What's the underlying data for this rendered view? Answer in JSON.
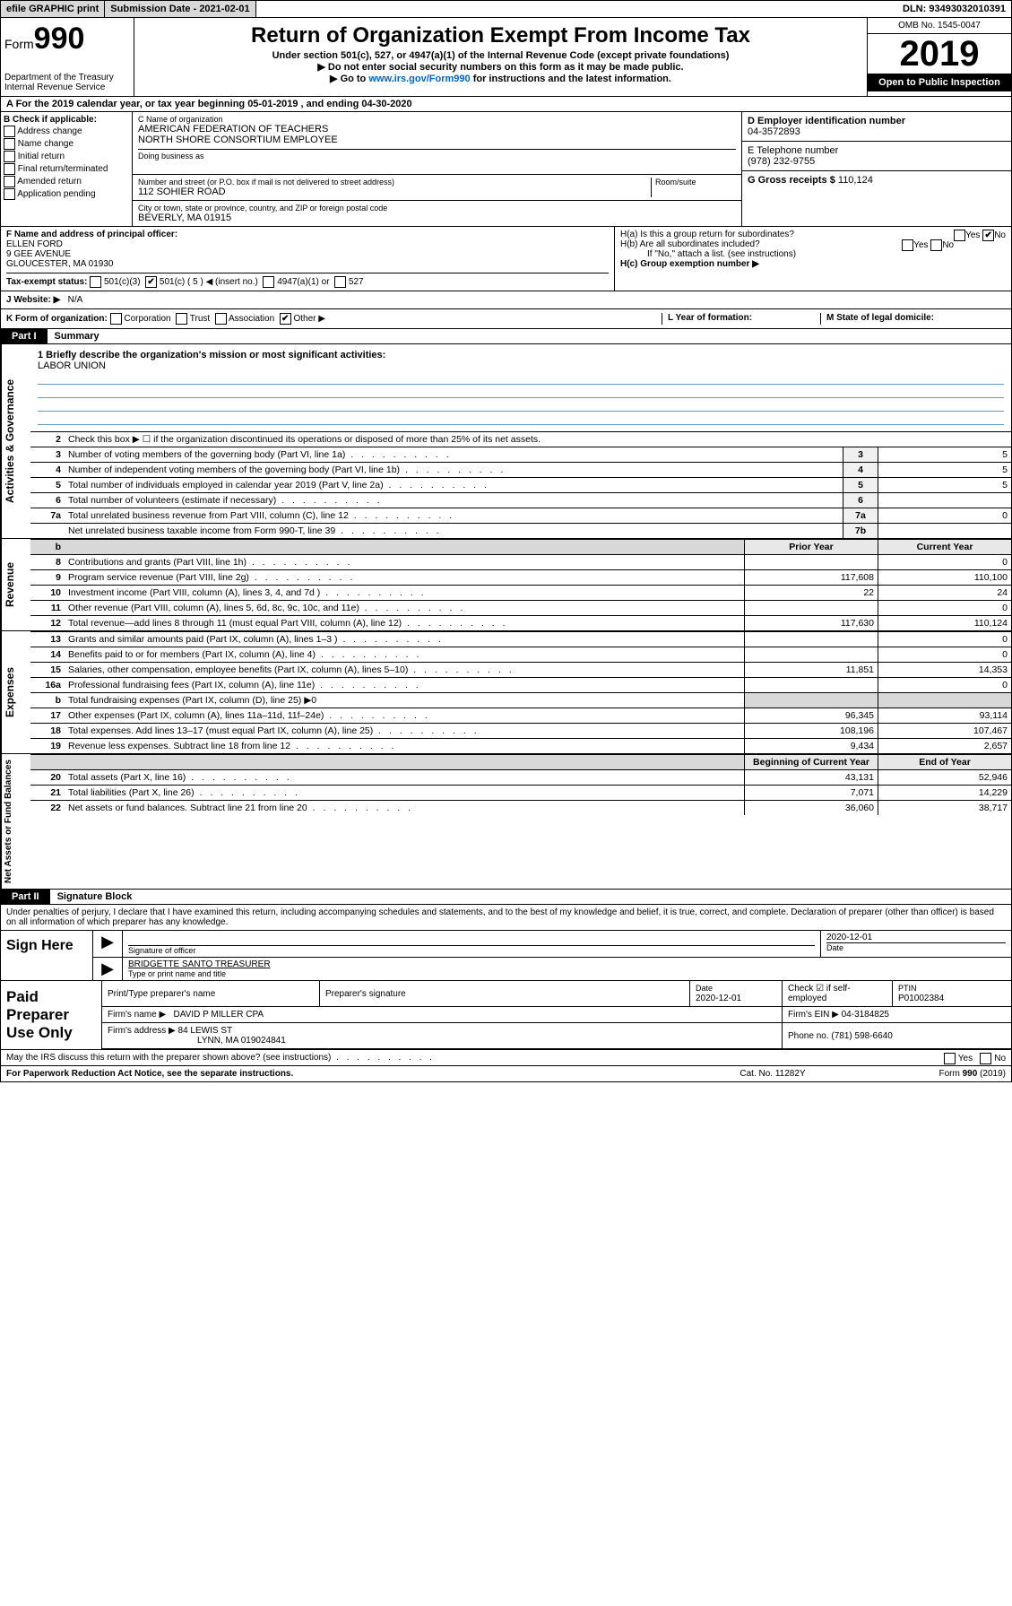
{
  "topbar": {
    "efile": "efile GRAPHIC print",
    "submission": "Submission Date - 2021-02-01",
    "dln": "DLN: 93493032010391"
  },
  "header": {
    "form_prefix": "Form",
    "form_no": "990",
    "dept": "Department of the Treasury\nInternal Revenue Service",
    "title": "Return of Organization Exempt From Income Tax",
    "sub1": "Under section 501(c), 527, or 4947(a)(1) of the Internal Revenue Code (except private foundations)",
    "sub2": "▶ Do not enter social security numbers on this form as it may be made public.",
    "sub3_a": "▶ Go to ",
    "sub3_link": "www.irs.gov/Form990",
    "sub3_b": " for instructions and the latest information.",
    "omb": "OMB No. 1545-0047",
    "year": "2019",
    "inspection": "Open to Public Inspection"
  },
  "rowA": "A   For the 2019 calendar year, or tax year beginning 05-01-2019    , and ending 04-30-2020",
  "boxB": {
    "label": "B Check if applicable:",
    "opts": [
      "Address change",
      "Name change",
      "Initial return",
      "Final return/terminated",
      "Amended return",
      "Application pending"
    ]
  },
  "boxC": {
    "label_name": "C Name of organization",
    "org_name": "AMERICAN FEDERATION OF TEACHERS\nNORTH SHORE CONSORTIUM EMPLOYEE",
    "dba_label": "Doing business as",
    "addr_label": "Number and street (or P.O. box if mail is not delivered to street address)",
    "addr": "112 SOHIER ROAD",
    "room_label": "Room/suite",
    "city_label": "City or town, state or province, country, and ZIP or foreign postal code",
    "city": "BEVERLY, MA  01915"
  },
  "boxD": {
    "label": "D Employer identification number",
    "value": "04-3572893"
  },
  "boxE": {
    "label": "E Telephone number",
    "value": "(978) 232-9755"
  },
  "boxG": {
    "label": "G Gross receipts $",
    "value": "110,124"
  },
  "boxF": {
    "label": "F  Name and address of principal officer:",
    "name": "ELLEN FORD",
    "addr1": "9 GEE AVENUE",
    "addr2": "GLOUCESTER, MA  01930"
  },
  "boxH": {
    "a_label": "H(a)  Is this a group return for subordinates?",
    "b_label": "H(b)  Are all subordinates included?",
    "b_note": "If \"No,\" attach a list. (see instructions)",
    "c_label": "H(c)  Group exemption number ▶"
  },
  "taxStatus": {
    "label": "Tax-exempt status:",
    "opts": [
      "501(c)(3)",
      "501(c) ( 5 ) ◀ (insert no.)",
      "4947(a)(1) or",
      "527"
    ]
  },
  "boxJ": {
    "label": "J   Website: ▶",
    "value": "N/A"
  },
  "rowK": {
    "label": "K Form of organization:",
    "opts": [
      "Corporation",
      "Trust",
      "Association",
      "Other ▶"
    ]
  },
  "rowL": "L Year of formation:",
  "rowM": "M State of legal domicile:",
  "part1": {
    "tab": "Part I",
    "title": "Summary",
    "vlabels": [
      "Activities & Governance",
      "Revenue",
      "Expenses",
      "Net Assets or Fund Balances"
    ],
    "q1": "1  Briefly describe the organization's mission or most significant activities:",
    "mission": "LABOR UNION",
    "q2": "Check this box ▶ ☐  if the organization discontinued its operations or disposed of more than 25% of its net assets.",
    "lines_gov": [
      {
        "n": "3",
        "d": "Number of voting members of the governing body (Part VI, line 1a)",
        "k": "3",
        "v": "5"
      },
      {
        "n": "4",
        "d": "Number of independent voting members of the governing body (Part VI, line 1b)",
        "k": "4",
        "v": "5"
      },
      {
        "n": "5",
        "d": "Total number of individuals employed in calendar year 2019 (Part V, line 2a)",
        "k": "5",
        "v": "5"
      },
      {
        "n": "6",
        "d": "Total number of volunteers (estimate if necessary)",
        "k": "6",
        "v": ""
      },
      {
        "n": "7a",
        "d": "Total unrelated business revenue from Part VIII, column (C), line 12",
        "k": "7a",
        "v": "0"
      },
      {
        "n": "",
        "d": "Net unrelated business taxable income from Form 990-T, line 39",
        "k": "7b",
        "v": ""
      }
    ],
    "hdr_prior": "Prior Year",
    "hdr_current": "Current Year",
    "lines_rev": [
      {
        "n": "8",
        "d": "Contributions and grants (Part VIII, line 1h)",
        "p": "",
        "c": "0"
      },
      {
        "n": "9",
        "d": "Program service revenue (Part VIII, line 2g)",
        "p": "117,608",
        "c": "110,100"
      },
      {
        "n": "10",
        "d": "Investment income (Part VIII, column (A), lines 3, 4, and 7d )",
        "p": "22",
        "c": "24"
      },
      {
        "n": "11",
        "d": "Other revenue (Part VIII, column (A), lines 5, 6d, 8c, 9c, 10c, and 11e)",
        "p": "",
        "c": "0"
      },
      {
        "n": "12",
        "d": "Total revenue—add lines 8 through 11 (must equal Part VIII, column (A), line 12)",
        "p": "117,630",
        "c": "110,124"
      }
    ],
    "lines_exp": [
      {
        "n": "13",
        "d": "Grants and similar amounts paid (Part IX, column (A), lines 1–3 )",
        "p": "",
        "c": "0"
      },
      {
        "n": "14",
        "d": "Benefits paid to or for members (Part IX, column (A), line 4)",
        "p": "",
        "c": "0"
      },
      {
        "n": "15",
        "d": "Salaries, other compensation, employee benefits (Part IX, column (A), lines 5–10)",
        "p": "11,851",
        "c": "14,353"
      },
      {
        "n": "16a",
        "d": "Professional fundraising fees (Part IX, column (A), line 11e)",
        "p": "",
        "c": "0"
      },
      {
        "n": "b",
        "d": "Total fundraising expenses (Part IX, column (D), line 25) ▶0",
        "p": "shade",
        "c": "shade"
      },
      {
        "n": "17",
        "d": "Other expenses (Part IX, column (A), lines 11a–11d, 11f–24e)",
        "p": "96,345",
        "c": "93,114"
      },
      {
        "n": "18",
        "d": "Total expenses. Add lines 13–17 (must equal Part IX, column (A), line 25)",
        "p": "108,196",
        "c": "107,467"
      },
      {
        "n": "19",
        "d": "Revenue less expenses. Subtract line 18 from line 12",
        "p": "9,434",
        "c": "2,657"
      }
    ],
    "hdr_begin": "Beginning of Current Year",
    "hdr_end": "End of Year",
    "lines_net": [
      {
        "n": "20",
        "d": "Total assets (Part X, line 16)",
        "p": "43,131",
        "c": "52,946"
      },
      {
        "n": "21",
        "d": "Total liabilities (Part X, line 26)",
        "p": "7,071",
        "c": "14,229"
      },
      {
        "n": "22",
        "d": "Net assets or fund balances. Subtract line 21 from line 20",
        "p": "36,060",
        "c": "38,717"
      }
    ]
  },
  "part2": {
    "tab": "Part II",
    "title": "Signature Block",
    "penalties": "Under penalties of perjury, I declare that I have examined this return, including accompanying schedules and statements, and to the best of my knowledge and belief, it is true, correct, and complete. Declaration of preparer (other than officer) is based on all information of which preparer has any knowledge."
  },
  "sign": {
    "label": "Sign Here",
    "sig_of_officer": "Signature of officer",
    "date": "2020-12-01",
    "date_label": "Date",
    "typed_name": "BRIDGETTE SANTO TREASURER",
    "typed_label": "Type or print name and title"
  },
  "preparer": {
    "label": "Paid Preparer Use Only",
    "h_name": "Print/Type preparer's name",
    "h_sig": "Preparer's signature",
    "h_date": "Date",
    "date": "2020-12-01",
    "check_label": "Check ☑ if self-employed",
    "ptin_label": "PTIN",
    "ptin": "P01002384",
    "firm_name_label": "Firm's name    ▶",
    "firm_name": "DAVID P MILLER CPA",
    "firm_ein_label": "Firm's EIN ▶",
    "firm_ein": "04-3184825",
    "firm_addr_label": "Firm's address ▶",
    "firm_addr1": "84 LEWIS ST",
    "firm_addr2": "LYNN, MA  019024841",
    "phone_label": "Phone no.",
    "phone": "(781) 598-6640"
  },
  "footer": {
    "discuss": "May the IRS discuss this return with the preparer shown above? (see instructions)",
    "paperwork": "For Paperwork Reduction Act Notice, see the separate instructions.",
    "catno": "Cat. No. 11282Y",
    "formno": "Form 990 (2019)"
  }
}
